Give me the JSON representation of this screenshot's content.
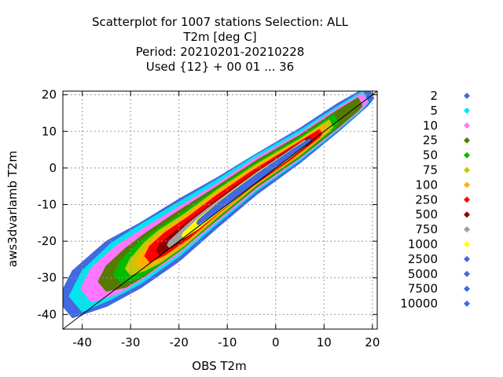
{
  "chart_data": {
    "type": "scatter",
    "title_lines": [
      "Scatterplot for 1007 stations Selection: ALL",
      "T2m [deg C]",
      "Period: 20210201-20210228",
      "Used {12} + 00 01 ... 36"
    ],
    "xlabel": "OBS T2m",
    "ylabel": "aws3dvarlamb T2m",
    "xlim": [
      -44,
      21
    ],
    "ylim": [
      -44,
      21
    ],
    "x_ticks": [
      -40,
      -30,
      -20,
      -10,
      0,
      10,
      20
    ],
    "y_ticks": [
      -40,
      -30,
      -20,
      -10,
      0,
      10,
      20
    ],
    "grid": true,
    "legend_position": "right",
    "diagonal_line": true,
    "density_levels": [
      {
        "label": "2",
        "threshold": 2,
        "color": "#4169e1"
      },
      {
        "label": "5",
        "threshold": 5,
        "color": "#00e5ee"
      },
      {
        "label": "10",
        "threshold": 10,
        "color": "#ff77ff"
      },
      {
        "label": "25",
        "threshold": 25,
        "color": "#557a00"
      },
      {
        "label": "50",
        "threshold": 50,
        "color": "#00bb00"
      },
      {
        "label": "75",
        "threshold": 75,
        "color": "#c8c800"
      },
      {
        "label": "100",
        "threshold": 100,
        "color": "#ffb000"
      },
      {
        "label": "250",
        "threshold": 250,
        "color": "#ff0000"
      },
      {
        "label": "500",
        "threshold": 500,
        "color": "#8b0000"
      },
      {
        "label": "750",
        "threshold": 750,
        "color": "#a0a0a0"
      },
      {
        "label": "1000",
        "threshold": 1000,
        "color": "#ffff00"
      },
      {
        "label": "2500",
        "threshold": 2500,
        "color": "#4169e1"
      },
      {
        "label": "5000",
        "threshold": 5000,
        "color": "#4169e1"
      },
      {
        "label": "7500",
        "threshold": 7500,
        "color": "#4169e1"
      },
      {
        "label": "10000",
        "threshold": 10000,
        "color": "#4169e1"
      }
    ],
    "density_bands": [
      {
        "level": "2",
        "points": [
          [
            -42,
            -36,
            3.0
          ],
          [
            -35,
            -31,
            4.2
          ],
          [
            -28,
            -26,
            4.2
          ],
          [
            -20,
            -19,
            4.0
          ],
          [
            -12,
            -11,
            3.2
          ],
          [
            -4,
            -3,
            2.6
          ],
          [
            5,
            5,
            2.2
          ],
          [
            13,
            13,
            1.8
          ],
          [
            19,
            19,
            1.2
          ]
        ]
      },
      {
        "level": "5",
        "points": [
          [
            -40,
            -35,
            2.6
          ],
          [
            -34,
            -30,
            3.6
          ],
          [
            -28,
            -25.5,
            3.8
          ],
          [
            -20,
            -18.5,
            3.5
          ],
          [
            -12,
            -10.5,
            2.8
          ],
          [
            -4,
            -2.5,
            2.3
          ],
          [
            5,
            5.2,
            1.9
          ],
          [
            13,
            13,
            1.5
          ],
          [
            18,
            18,
            1.1
          ]
        ]
      },
      {
        "level": "10",
        "points": [
          [
            -38,
            -33,
            2.2
          ],
          [
            -33,
            -29.5,
            3.1
          ],
          [
            -28,
            -25.5,
            3.2
          ],
          [
            -20,
            -18.5,
            3.0
          ],
          [
            -12,
            -10.5,
            2.4
          ],
          [
            -4,
            -2.5,
            2.0
          ],
          [
            5,
            5.2,
            1.6
          ],
          [
            13,
            13,
            1.3
          ],
          [
            18,
            18,
            0.9
          ]
        ]
      },
      {
        "level": "25",
        "points": [
          [
            -35,
            -31,
            1.6
          ],
          [
            -31,
            -28.5,
            2.5
          ],
          [
            -27,
            -25,
            2.7
          ],
          [
            -20,
            -18.5,
            2.6
          ],
          [
            -12,
            -10.5,
            2.1
          ],
          [
            -4,
            -2.5,
            1.7
          ],
          [
            5,
            5.2,
            1.4
          ],
          [
            13,
            13,
            1.1
          ],
          [
            17,
            17,
            0.8
          ]
        ]
      },
      {
        "level": "50",
        "points": [
          [
            -32,
            -29,
            1.4
          ],
          [
            -29,
            -27,
            2.2
          ],
          [
            -25,
            -23.5,
            2.4
          ],
          [
            -19,
            -18,
            2.3
          ],
          [
            -12,
            -10.5,
            1.9
          ],
          [
            -4,
            -2.5,
            1.5
          ],
          [
            5,
            5.2,
            1.2
          ],
          [
            12,
            12.2,
            0.9
          ]
        ]
      },
      {
        "level": "75",
        "points": [
          [
            -30,
            -27.5,
            1.0
          ],
          [
            -27,
            -25,
            1.8
          ],
          [
            -24,
            -22.5,
            2.1
          ],
          [
            -19,
            -18,
            2.0
          ],
          [
            -12,
            -10.5,
            1.7
          ],
          [
            -4,
            -2.5,
            1.3
          ],
          [
            5,
            5.2,
            1.0
          ],
          [
            11,
            11.2,
            0.7
          ]
        ]
      },
      {
        "level": "100",
        "points": [
          [
            -28,
            -26,
            0.8
          ],
          [
            -26,
            -24.2,
            1.5
          ],
          [
            -23,
            -21.8,
            1.8
          ],
          [
            -18,
            -17.2,
            1.8
          ],
          [
            -12,
            -10.5,
            1.5
          ],
          [
            -4,
            -2.5,
            1.2
          ],
          [
            5,
            5.2,
            0.9
          ],
          [
            10,
            10.2,
            0.6
          ]
        ]
      },
      {
        "level": "250",
        "points": [
          [
            -26,
            -24,
            1.0
          ],
          [
            -23,
            -21.5,
            1.4
          ],
          [
            -18,
            -17,
            1.4
          ],
          [
            -12,
            -10.5,
            1.2
          ],
          [
            -5,
            -3.5,
            0.95
          ],
          [
            3,
            3.5,
            0.75
          ],
          [
            9,
            9.2,
            0.45
          ]
        ]
      },
      {
        "level": "500",
        "points": [
          [
            -24,
            -22.5,
            0.6
          ],
          [
            -20,
            -19,
            0.9
          ],
          [
            -15,
            -14,
            0.9
          ],
          [
            -10,
            -8.8,
            0.8
          ],
          [
            -4,
            -2.8,
            0.65
          ],
          [
            2,
            2.8,
            0.55
          ],
          [
            7,
            7.3,
            0.4
          ]
        ]
      },
      {
        "level": "750",
        "points": [
          [
            -22,
            -21,
            0.35
          ],
          [
            -18,
            -17,
            0.7
          ],
          [
            -14,
            -13,
            0.75
          ],
          [
            -9,
            -8,
            0.68
          ],
          [
            -4,
            -2.8,
            0.55
          ],
          [
            1,
            1.8,
            0.45
          ],
          [
            6,
            6.6,
            0.35
          ]
        ]
      },
      {
        "level": "1000",
        "points": [
          [
            -19,
            -18.5,
            0.3
          ],
          [
            -16,
            -15.5,
            0.6
          ],
          [
            -12,
            -11.2,
            0.62
          ],
          [
            -8,
            -7,
            0.58
          ],
          [
            -3,
            -2,
            0.48
          ],
          [
            2,
            2.6,
            0.4
          ],
          [
            6,
            6.5,
            0.3
          ]
        ]
      },
      {
        "level": "2500",
        "points": [
          [
            -16,
            -15,
            0.25
          ],
          [
            -12,
            -11,
            0.48
          ],
          [
            -8,
            -7,
            0.5
          ],
          [
            -4,
            -3,
            0.45
          ],
          [
            0,
            0.8,
            0.38
          ],
          [
            4,
            4.6,
            0.3
          ],
          [
            7,
            7.4,
            0.2
          ]
        ]
      }
    ]
  }
}
